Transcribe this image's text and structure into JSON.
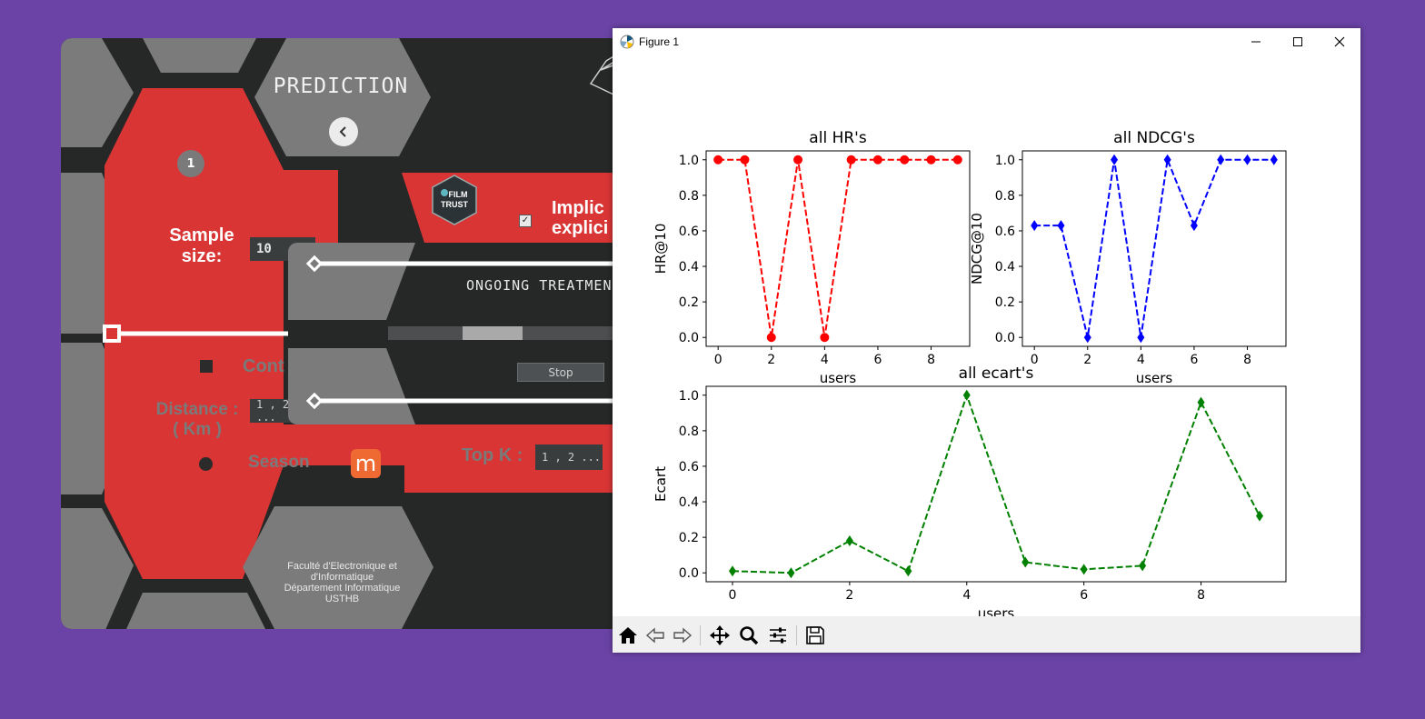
{
  "app": {
    "title": "PREDICTION",
    "step_badge": "1",
    "sample_size_label": "Sample size:",
    "sample_size_value": "10",
    "implicit_label_line1": "Implic",
    "implicit_label_line2": "explici",
    "context_label": "Cont",
    "distance_label_line1": "Distance :",
    "distance_label_line2": "( Km )",
    "distance_value": "1 , 2 ...",
    "season_label": "Season",
    "topk_label": "Top K :",
    "topk_value": "1 , 2 ...",
    "season_icon_letter": "m",
    "filmtrust_line1": "FILM",
    "filmtrust_line2": "TRUST",
    "faculty_line1": "Faculté d'Electronique et",
    "faculty_line2": "d'Informatique",
    "faculty_line3": "Département Informatique",
    "faculty_line4": "USTHB",
    "treatment_title": "ONGOING TREATMEN",
    "stop_label": "Stop",
    "progress_fraction": 0.33,
    "colors": {
      "red": "#d93535",
      "gray": "#7b7b7b",
      "dark": "#262828",
      "purple": "#6b43a6"
    }
  },
  "window": {
    "title": "Figure 1",
    "icon": "matplotlib-icon",
    "controls": [
      "minimize-icon",
      "maximize-icon",
      "close-icon"
    ]
  },
  "toolbar": {
    "tools": [
      "home-icon",
      "back-arrow-icon",
      "forward-arrow-icon",
      "pan-icon",
      "zoom-icon",
      "configure-subplots-icon",
      "save-icon"
    ]
  },
  "chart_data": [
    {
      "type": "line",
      "title": "all HR's",
      "xlabel": "users",
      "ylabel": "HR@10",
      "x": [
        0,
        1,
        2,
        3,
        4,
        5,
        6,
        7,
        8,
        9
      ],
      "values": [
        1,
        1,
        0,
        1,
        0,
        1,
        1,
        1,
        1,
        1
      ],
      "xticks": [
        "0",
        "2",
        "4",
        "6",
        "8"
      ],
      "yticks": [
        "0.0",
        "0.2",
        "0.4",
        "0.6",
        "0.8",
        "1.0"
      ],
      "color": "#ff0000",
      "marker": "circle",
      "linestyle": "dashed",
      "grid": false
    },
    {
      "type": "line",
      "title": "all NDCG's",
      "xlabel": "users",
      "ylabel": "NDCG@10",
      "x": [
        0,
        1,
        2,
        3,
        4,
        5,
        6,
        7,
        8,
        9
      ],
      "values": [
        0.63,
        0.63,
        0,
        1,
        0,
        1,
        0.63,
        1,
        1,
        1
      ],
      "xticks": [
        "0",
        "2",
        "4",
        "6",
        "8"
      ],
      "yticks": [
        "0.0",
        "0.2",
        "0.4",
        "0.6",
        "0.8",
        "1.0"
      ],
      "color": "#0000ff",
      "marker": "diamond",
      "linestyle": "dashed",
      "grid": false
    },
    {
      "type": "line",
      "title": "all ecart's",
      "xlabel": "users",
      "ylabel": "Ecart",
      "x": [
        0,
        1,
        2,
        3,
        4,
        5,
        6,
        7,
        8,
        9
      ],
      "values": [
        0.01,
        0.0,
        0.18,
        0.01,
        1.0,
        0.06,
        0.02,
        0.04,
        0.96,
        0.32
      ],
      "xticks": [
        "0",
        "2",
        "4",
        "6",
        "8"
      ],
      "yticks": [
        "0.0",
        "0.2",
        "0.4",
        "0.6",
        "0.8",
        "1.0"
      ],
      "color": "#008000",
      "marker": "diamond",
      "linestyle": "dashed",
      "grid": false
    }
  ]
}
